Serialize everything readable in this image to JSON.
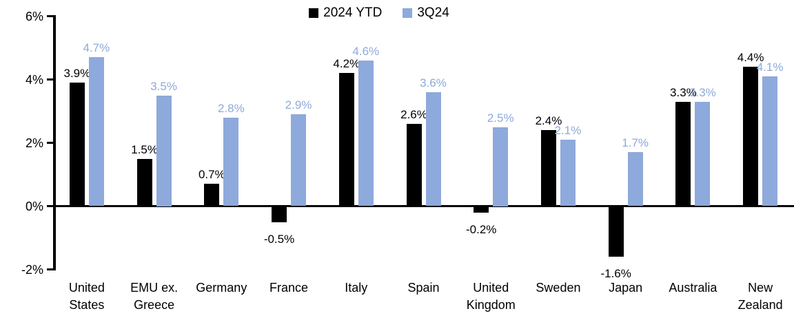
{
  "chart_data": {
    "type": "bar",
    "title": "",
    "xlabel": "",
    "ylabel": "",
    "ylim": [
      -2,
      6
    ],
    "grid": false,
    "legend_position": "top-center",
    "yticks": [
      {
        "value": 6,
        "label": "6%"
      },
      {
        "value": 4,
        "label": "4%"
      },
      {
        "value": 2,
        "label": "2%"
      },
      {
        "value": 0,
        "label": "0%"
      },
      {
        "value": -2,
        "label": "-2%"
      }
    ],
    "categories": [
      "United States",
      "EMU ex. Greece",
      "Germany",
      "France",
      "Italy",
      "Spain",
      "United Kingdom",
      "Sweden",
      "Japan",
      "Australia",
      "New Zealand"
    ],
    "category_lines": [
      [
        "United",
        "States"
      ],
      [
        "EMU ex.",
        "Greece"
      ],
      [
        "Germany"
      ],
      [
        "France"
      ],
      [
        "Italy"
      ],
      [
        "Spain"
      ],
      [
        "United",
        "Kingdom"
      ],
      [
        "Sweden"
      ],
      [
        "Japan"
      ],
      [
        "Australia"
      ],
      [
        "New",
        "Zealand"
      ]
    ],
    "series": [
      {
        "name": "2024 YTD",
        "color": "#000000",
        "values": [
          3.9,
          1.5,
          0.7,
          -0.5,
          4.2,
          2.6,
          -0.2,
          2.4,
          -1.6,
          3.3,
          4.4
        ],
        "labels": [
          "3.9%",
          "1.5%",
          "0.7%",
          "-0.5%",
          "4.2%",
          "2.6%",
          "-0.2%",
          "2.4%",
          "-1.6%",
          "3.3%",
          "4.4%"
        ]
      },
      {
        "name": "3Q24",
        "color": "#8EA9DB",
        "values": [
          4.7,
          3.5,
          2.8,
          2.9,
          4.6,
          3.6,
          2.5,
          2.1,
          1.7,
          3.3,
          4.1
        ],
        "labels": [
          "4.7%",
          "3.5%",
          "2.8%",
          "2.9%",
          "4.6%",
          "3.6%",
          "2.5%",
          "2.1%",
          "1.7%",
          "3.3%",
          "4.1%"
        ]
      }
    ]
  }
}
